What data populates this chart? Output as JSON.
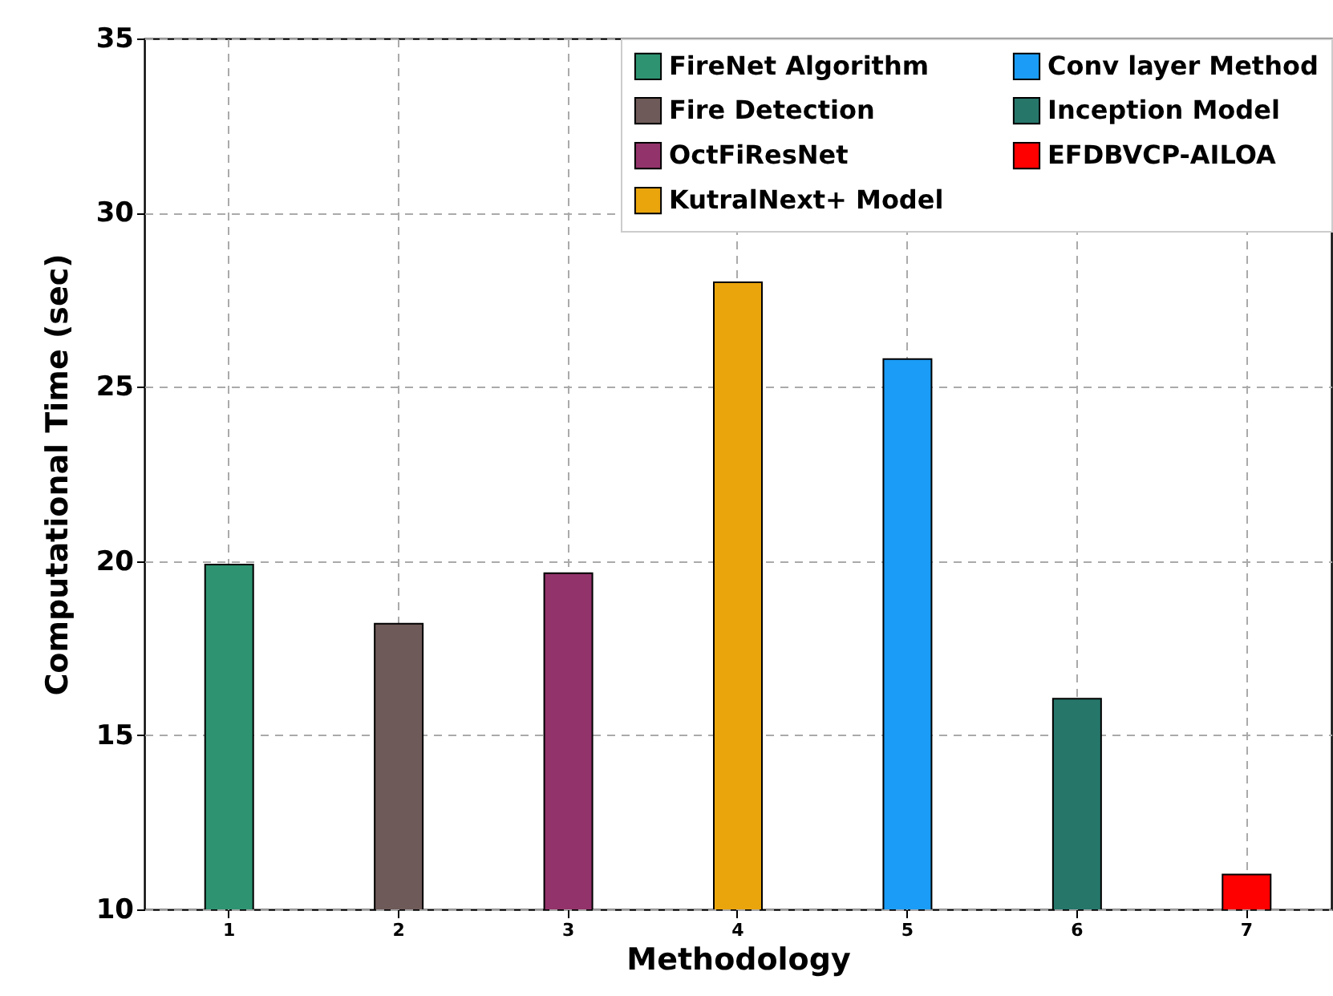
{
  "chart_data": {
    "type": "bar",
    "xlabel": "Methodology",
    "ylabel": "Computational Time (sec)",
    "categories": [
      "1",
      "2",
      "3",
      "4",
      "5",
      "6",
      "7"
    ],
    "series": [
      {
        "name": "FireNet Algorithm",
        "color": "#2e9371",
        "values": [
          19.9,
          null,
          null,
          null,
          null,
          null,
          null
        ]
      },
      {
        "name": "Fire Detection",
        "color": "#6e5a58",
        "values": [
          null,
          18.2,
          null,
          null,
          null,
          null,
          null
        ]
      },
      {
        "name": "OctFiResNet",
        "color": "#93336b",
        "values": [
          null,
          null,
          19.65,
          null,
          null,
          null,
          null
        ]
      },
      {
        "name": "KutralNext+ Model",
        "color": "#eaa50c",
        "values": [
          null,
          null,
          null,
          28.0,
          null,
          null,
          null
        ]
      },
      {
        "name": "Conv layer Method",
        "color": "#1a9cf7",
        "values": [
          null,
          null,
          null,
          null,
          25.8,
          null,
          null
        ]
      },
      {
        "name": "Inception Model",
        "color": "#26766a",
        "values": [
          null,
          null,
          null,
          null,
          null,
          16.05,
          null
        ]
      },
      {
        "name": "EFDBVCP-AILOA",
        "color": "#ff0000",
        "values": [
          null,
          null,
          null,
          null,
          null,
          null,
          11.0
        ]
      }
    ],
    "ylim": [
      10,
      35
    ],
    "yticks": [
      10,
      15,
      20,
      25,
      30,
      35
    ],
    "grid": true,
    "legend": "top right"
  }
}
